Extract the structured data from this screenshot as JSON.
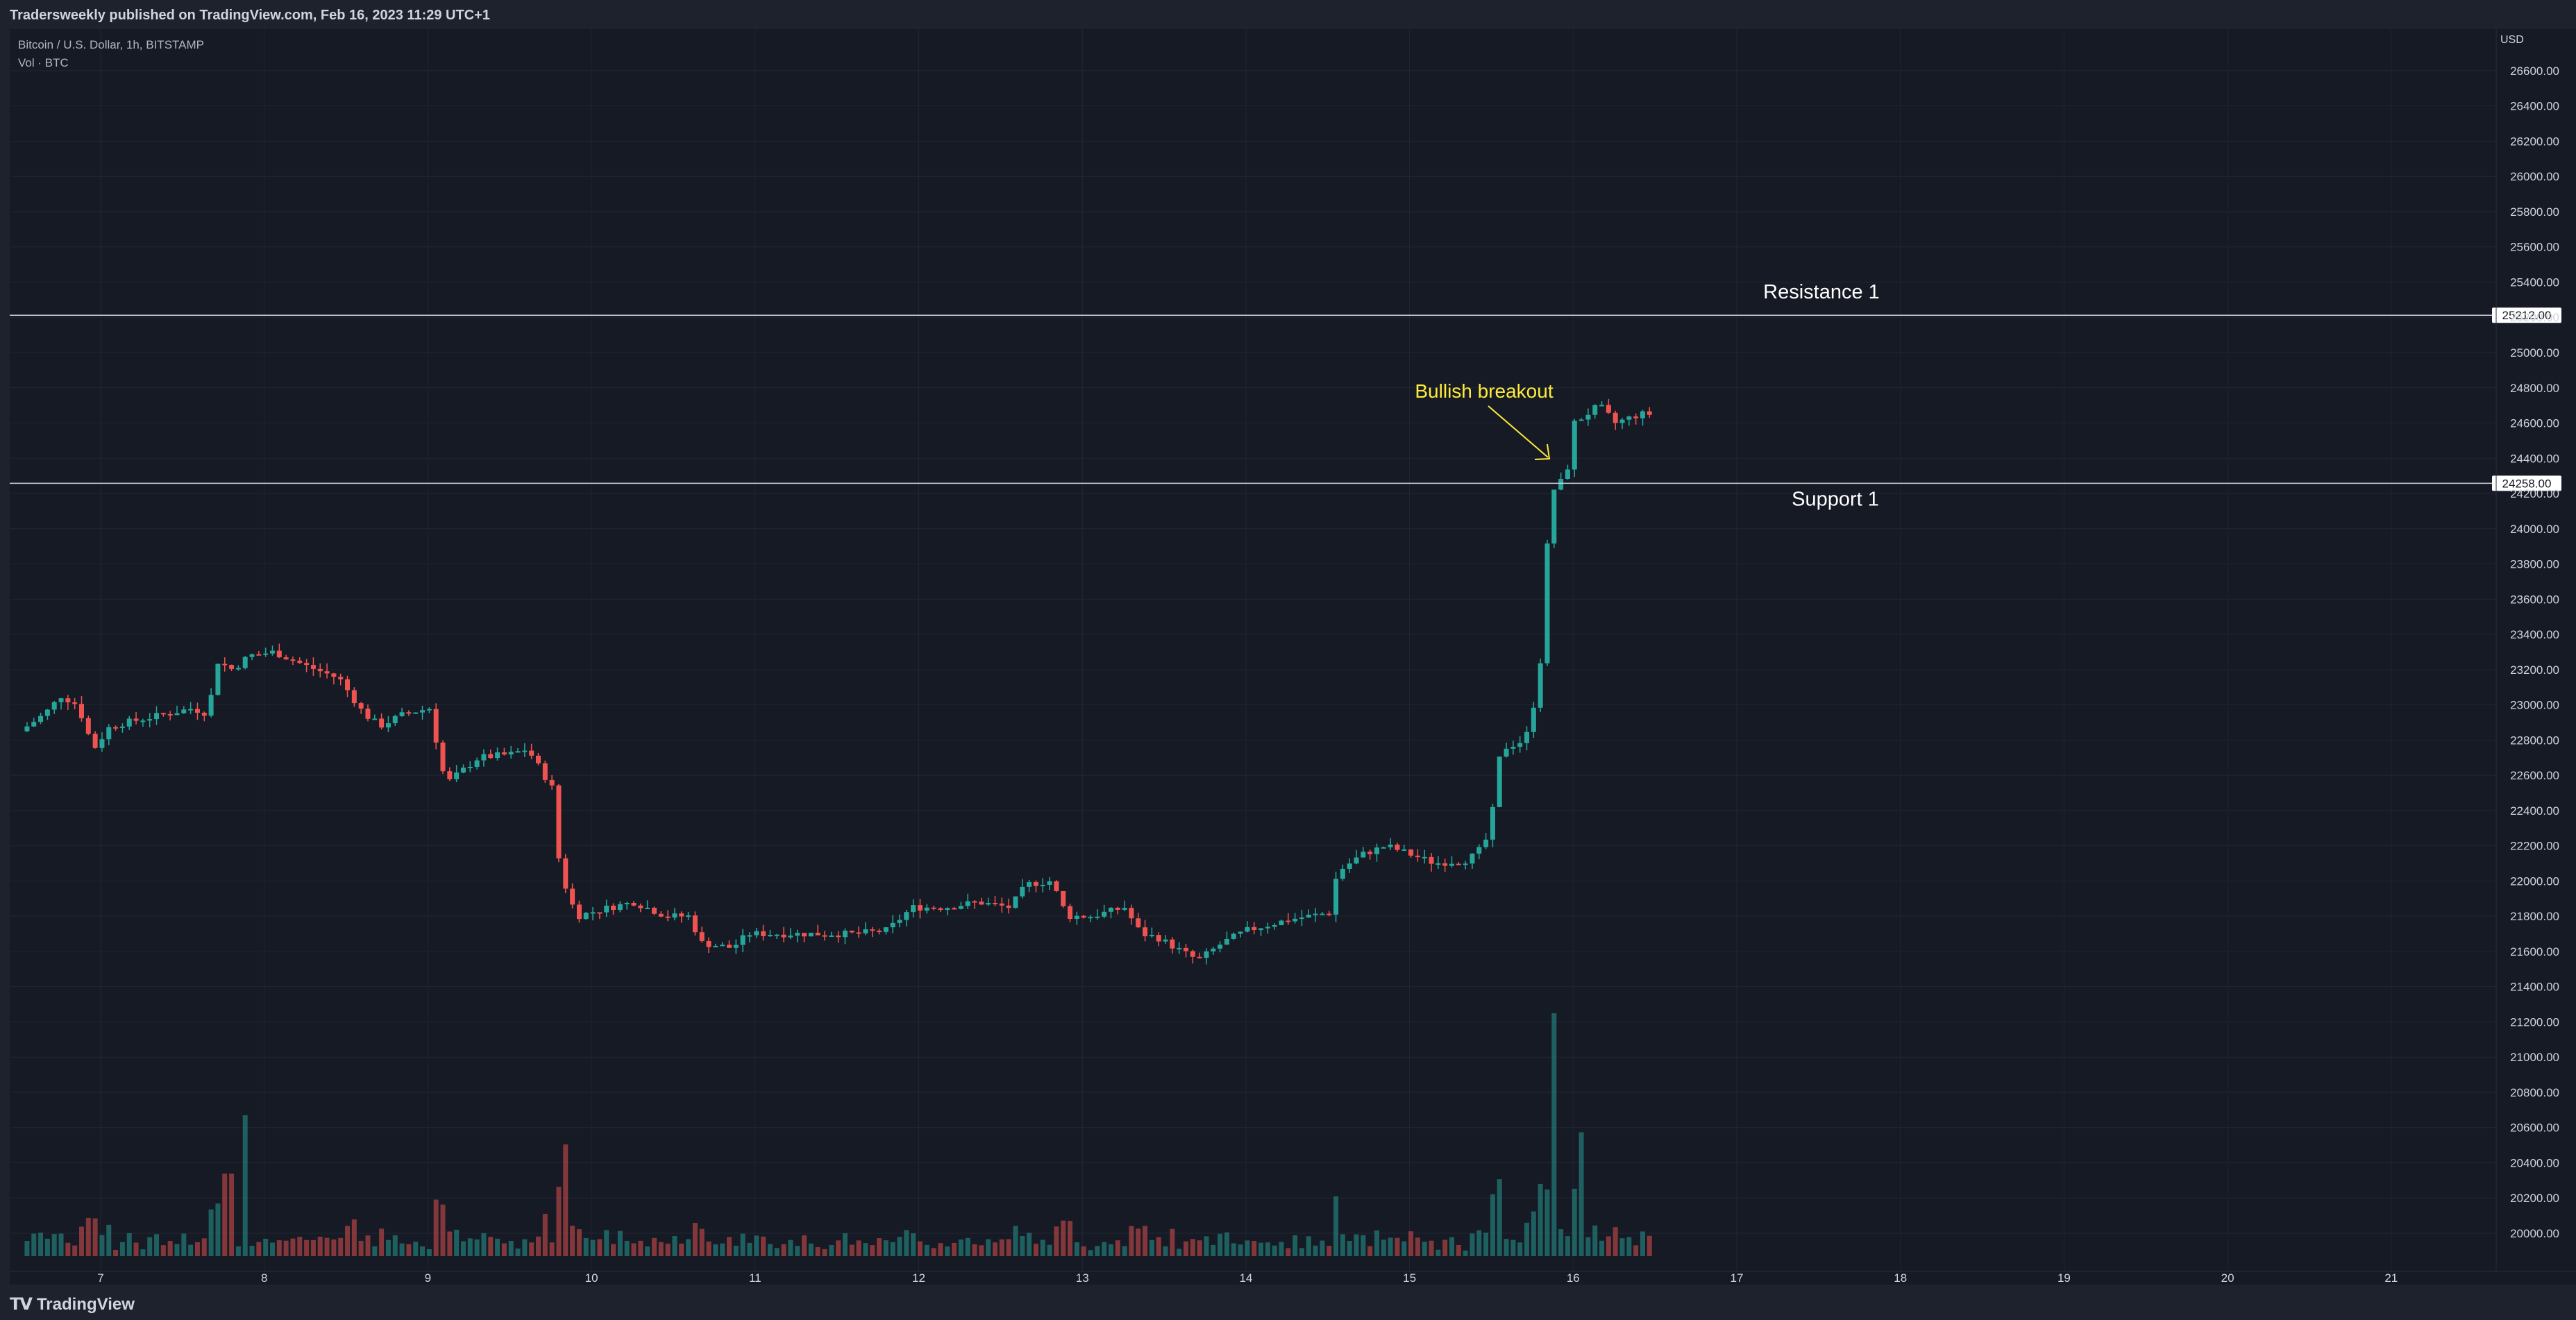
{
  "header": {
    "published": "Tradersweekly published on TradingView.com, Feb 16, 2023 11:29 UTC+1"
  },
  "legend": {
    "symbol": "Bitcoin / U.S. Dollar, 1h, BITSTAMP",
    "volume": "Vol · BTC"
  },
  "footer": {
    "brand": "TradingView"
  },
  "colors": {
    "background": "#161a25",
    "up": "#26a69a",
    "down": "#ef5350",
    "grid": "#222633",
    "axis_text": "#d1d4dc",
    "annotation": "#ffeb3b"
  },
  "chart_data": {
    "type": "candlestick",
    "currency": "USD",
    "ylim": [
      19900,
      26700
    ],
    "y_ticks": [
      "26600.00",
      "26400.00",
      "26200.00",
      "26000.00",
      "25800.00",
      "25600.00",
      "25400.00",
      "25200.00",
      "25000.00",
      "24800.00",
      "24600.00",
      "24400.00",
      "24200.00",
      "24000.00",
      "23800.00",
      "23600.00",
      "23400.00",
      "23200.00",
      "23000.00",
      "22800.00",
      "22600.00",
      "22400.00",
      "22200.00",
      "22000.00",
      "21800.00",
      "21600.00",
      "21400.00",
      "21200.00",
      "21000.00",
      "20800.00",
      "20600.00",
      "20400.00",
      "20200.00",
      "20000.00"
    ],
    "x_ticks": [
      "7",
      "8",
      "9",
      "10",
      "11",
      "12",
      "13",
      "14",
      "15",
      "16",
      "17",
      "18",
      "19",
      "20",
      "21"
    ],
    "horizontal_lines": [
      {
        "label": "Resistance 1",
        "price": 25212,
        "price_label": "25212.00"
      },
      {
        "label": "Support 1",
        "price": 24258,
        "price_label": "24258.00"
      }
    ],
    "annotations": [
      {
        "text": "Bullish breakout"
      }
    ],
    "price_path": [
      [
        6.55,
        22850
      ],
      [
        6.7,
        22950
      ],
      [
        6.8,
        23050
      ],
      [
        6.9,
        23000
      ],
      [
        7.0,
        22750
      ],
      [
        7.1,
        22880
      ],
      [
        7.3,
        22920
      ],
      [
        7.45,
        22950
      ],
      [
        7.6,
        22980
      ],
      [
        7.7,
        22950
      ],
      [
        7.75,
        23250
      ],
      [
        7.85,
        23200
      ],
      [
        7.95,
        23280
      ],
      [
        8.1,
        23300
      ],
      [
        8.3,
        23220
      ],
      [
        8.5,
        23150
      ],
      [
        8.65,
        22950
      ],
      [
        8.75,
        22880
      ],
      [
        8.9,
        22950
      ],
      [
        9.05,
        22980
      ],
      [
        9.15,
        22550
      ],
      [
        9.35,
        22700
      ],
      [
        9.55,
        22720
      ],
      [
        9.65,
        22750
      ],
      [
        9.8,
        22530
      ],
      [
        9.85,
        22050
      ],
      [
        9.95,
        21800
      ],
      [
        10.15,
        21850
      ],
      [
        10.3,
        21880
      ],
      [
        10.5,
        21800
      ],
      [
        10.65,
        21800
      ],
      [
        10.7,
        21650
      ],
      [
        10.9,
        21620
      ],
      [
        11.0,
        21700
      ],
      [
        11.3,
        21700
      ],
      [
        11.5,
        21700
      ],
      [
        11.65,
        21700
      ],
      [
        11.85,
        21720
      ],
      [
        12.0,
        21850
      ],
      [
        12.2,
        21850
      ],
      [
        12.4,
        21880
      ],
      [
        12.6,
        21850
      ],
      [
        12.7,
        21980
      ],
      [
        12.85,
        22000
      ],
      [
        12.95,
        21800
      ],
      [
        13.1,
        21800
      ],
      [
        13.3,
        21850
      ],
      [
        13.4,
        21700
      ],
      [
        13.5,
        21680
      ],
      [
        13.65,
        21600
      ],
      [
        13.75,
        21550
      ],
      [
        13.9,
        21650
      ],
      [
        14.05,
        21720
      ],
      [
        14.3,
        21780
      ],
      [
        14.55,
        21820
      ],
      [
        14.6,
        22050
      ],
      [
        14.75,
        22150
      ],
      [
        14.9,
        22200
      ],
      [
        15.05,
        22150
      ],
      [
        15.2,
        22100
      ],
      [
        15.4,
        22120
      ],
      [
        15.5,
        22200
      ],
      [
        15.55,
        22400
      ],
      [
        15.6,
        22750
      ],
      [
        15.75,
        22800
      ],
      [
        15.8,
        23000
      ],
      [
        15.85,
        23300
      ],
      [
        15.9,
        24200
      ],
      [
        16.0,
        24300
      ],
      [
        16.05,
        24600
      ],
      [
        16.2,
        24700
      ],
      [
        16.3,
        24600
      ],
      [
        16.45,
        24650
      ]
    ],
    "volume_spikes": [
      [
        7.78,
        0.34
      ],
      [
        7.9,
        0.58
      ],
      [
        9.85,
        0.46
      ],
      [
        15.88,
        1.0
      ],
      [
        16.05,
        0.51
      ]
    ]
  }
}
